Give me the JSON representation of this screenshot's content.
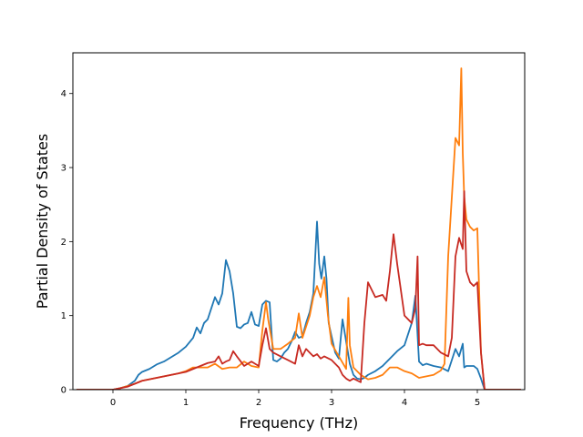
{
  "chart_data": {
    "type": "line",
    "title": "",
    "xlabel": "Frequency (THz)",
    "ylabel": "Partial Density of States",
    "xlim": [
      -0.55,
      5.65
    ],
    "ylim": [
      0,
      4.55
    ],
    "xticks": [
      0,
      1,
      2,
      3,
      4,
      5
    ],
    "yticks": [
      0,
      1,
      2,
      3,
      4
    ],
    "xtick_labels": [
      "0",
      "1",
      "2",
      "3",
      "4",
      "5"
    ],
    "ytick_labels": [
      "0",
      "1",
      "2",
      "3",
      "4"
    ],
    "grid": false,
    "series": [
      {
        "color": "#1f77b4",
        "x": [
          -0.5,
          0.0,
          0.1,
          0.2,
          0.3,
          0.35,
          0.4,
          0.45,
          0.5,
          0.6,
          0.7,
          0.8,
          0.9,
          1.0,
          1.1,
          1.15,
          1.2,
          1.25,
          1.3,
          1.35,
          1.4,
          1.45,
          1.5,
          1.55,
          1.6,
          1.65,
          1.7,
          1.75,
          1.8,
          1.85,
          1.9,
          1.95,
          2.0,
          2.05,
          2.1,
          2.15,
          2.2,
          2.25,
          2.3,
          2.35,
          2.4,
          2.45,
          2.5,
          2.55,
          2.6,
          2.65,
          2.7,
          2.75,
          2.8,
          2.83,
          2.86,
          2.9,
          2.93,
          2.96,
          3.0,
          3.05,
          3.1,
          3.15,
          3.2,
          3.25,
          3.3,
          3.35,
          3.4,
          3.45,
          3.5,
          3.6,
          3.7,
          3.8,
          3.9,
          4.0,
          4.1,
          4.15,
          4.2,
          4.25,
          4.3,
          4.4,
          4.5,
          4.6,
          4.65,
          4.7,
          4.75,
          4.8,
          4.82,
          4.85,
          4.9,
          4.95,
          5.0,
          5.05,
          5.1,
          5.6
        ],
        "y": [
          0,
          0,
          0.02,
          0.05,
          0.12,
          0.2,
          0.24,
          0.26,
          0.28,
          0.34,
          0.38,
          0.44,
          0.5,
          0.58,
          0.7,
          0.84,
          0.76,
          0.9,
          0.95,
          1.1,
          1.25,
          1.15,
          1.3,
          1.75,
          1.6,
          1.3,
          0.85,
          0.83,
          0.88,
          0.9,
          1.05,
          0.88,
          0.86,
          1.15,
          1.2,
          1.18,
          0.4,
          0.38,
          0.42,
          0.5,
          0.55,
          0.65,
          0.78,
          0.7,
          0.72,
          0.9,
          1.05,
          1.3,
          2.27,
          1.7,
          1.5,
          1.8,
          1.5,
          0.9,
          0.72,
          0.5,
          0.42,
          0.95,
          0.65,
          0.35,
          0.2,
          0.15,
          0.14,
          0.16,
          0.2,
          0.25,
          0.32,
          0.42,
          0.52,
          0.6,
          0.9,
          1.27,
          0.38,
          0.33,
          0.35,
          0.32,
          0.3,
          0.25,
          0.4,
          0.55,
          0.45,
          0.62,
          0.3,
          0.32,
          0.32,
          0.32,
          0.28,
          0.15,
          0,
          0
        ]
      },
      {
        "color": "#ff7f0e",
        "x": [
          -0.5,
          0.0,
          0.1,
          0.2,
          0.3,
          0.35,
          0.4,
          0.5,
          0.6,
          0.7,
          0.8,
          0.9,
          1.0,
          1.1,
          1.2,
          1.3,
          1.4,
          1.5,
          1.6,
          1.7,
          1.8,
          1.9,
          2.0,
          2.05,
          2.1,
          2.13,
          2.17,
          2.2,
          2.3,
          2.4,
          2.5,
          2.55,
          2.6,
          2.65,
          2.7,
          2.75,
          2.8,
          2.85,
          2.9,
          2.95,
          3.0,
          3.1,
          3.2,
          3.23,
          3.25,
          3.3,
          3.4,
          3.5,
          3.6,
          3.7,
          3.8,
          3.9,
          4.0,
          4.1,
          4.2,
          4.3,
          4.4,
          4.5,
          4.55,
          4.6,
          4.65,
          4.7,
          4.75,
          4.78,
          4.8,
          4.82,
          4.85,
          4.9,
          4.95,
          5.0,
          5.05,
          5.1,
          5.6
        ],
        "y": [
          0,
          0,
          0.02,
          0.05,
          0.08,
          0.1,
          0.12,
          0.14,
          0.16,
          0.18,
          0.2,
          0.22,
          0.25,
          0.3,
          0.3,
          0.3,
          0.35,
          0.28,
          0.3,
          0.3,
          0.38,
          0.32,
          0.3,
          0.8,
          1.18,
          0.95,
          0.72,
          0.55,
          0.55,
          0.62,
          0.7,
          1.03,
          0.7,
          0.85,
          1.0,
          1.25,
          1.4,
          1.25,
          1.52,
          1.0,
          0.62,
          0.45,
          0.28,
          1.24,
          0.6,
          0.3,
          0.2,
          0.14,
          0.16,
          0.2,
          0.3,
          0.3,
          0.25,
          0.22,
          0.16,
          0.18,
          0.2,
          0.26,
          0.35,
          1.8,
          2.6,
          3.4,
          3.3,
          4.34,
          3.2,
          2.6,
          2.3,
          2.2,
          2.15,
          2.18,
          0.5,
          0,
          0
        ]
      },
      {
        "color": "#c72a22",
        "x": [
          -0.5,
          0.0,
          0.1,
          0.2,
          0.3,
          0.35,
          0.4,
          0.5,
          0.6,
          0.7,
          0.8,
          0.9,
          1.0,
          1.1,
          1.2,
          1.3,
          1.4,
          1.45,
          1.5,
          1.55,
          1.6,
          1.65,
          1.7,
          1.8,
          1.9,
          2.0,
          2.05,
          2.1,
          2.15,
          2.2,
          2.3,
          2.4,
          2.5,
          2.55,
          2.6,
          2.65,
          2.7,
          2.75,
          2.8,
          2.85,
          2.9,
          3.0,
          3.1,
          3.15,
          3.2,
          3.25,
          3.3,
          3.4,
          3.45,
          3.5,
          3.55,
          3.6,
          3.7,
          3.75,
          3.8,
          3.85,
          3.9,
          4.0,
          4.1,
          4.15,
          4.18,
          4.2,
          4.25,
          4.3,
          4.4,
          4.5,
          4.6,
          4.65,
          4.7,
          4.75,
          4.8,
          4.82,
          4.85,
          4.9,
          4.95,
          5.0,
          5.05,
          5.1,
          5.6
        ],
        "y": [
          0,
          0,
          0.02,
          0.04,
          0.08,
          0.1,
          0.12,
          0.14,
          0.16,
          0.18,
          0.2,
          0.22,
          0.24,
          0.28,
          0.32,
          0.36,
          0.38,
          0.45,
          0.35,
          0.38,
          0.4,
          0.52,
          0.45,
          0.32,
          0.38,
          0.32,
          0.6,
          0.83,
          0.55,
          0.5,
          0.45,
          0.4,
          0.35,
          0.6,
          0.45,
          0.55,
          0.5,
          0.45,
          0.48,
          0.42,
          0.45,
          0.4,
          0.3,
          0.2,
          0.15,
          0.12,
          0.15,
          0.1,
          0.9,
          1.45,
          1.35,
          1.25,
          1.28,
          1.2,
          1.6,
          2.1,
          1.7,
          1.0,
          0.9,
          1.1,
          1.8,
          0.6,
          0.62,
          0.6,
          0.6,
          0.5,
          0.45,
          0.7,
          1.8,
          2.05,
          1.9,
          2.68,
          1.6,
          1.45,
          1.4,
          1.45,
          0.5,
          0,
          0
        ]
      }
    ]
  }
}
